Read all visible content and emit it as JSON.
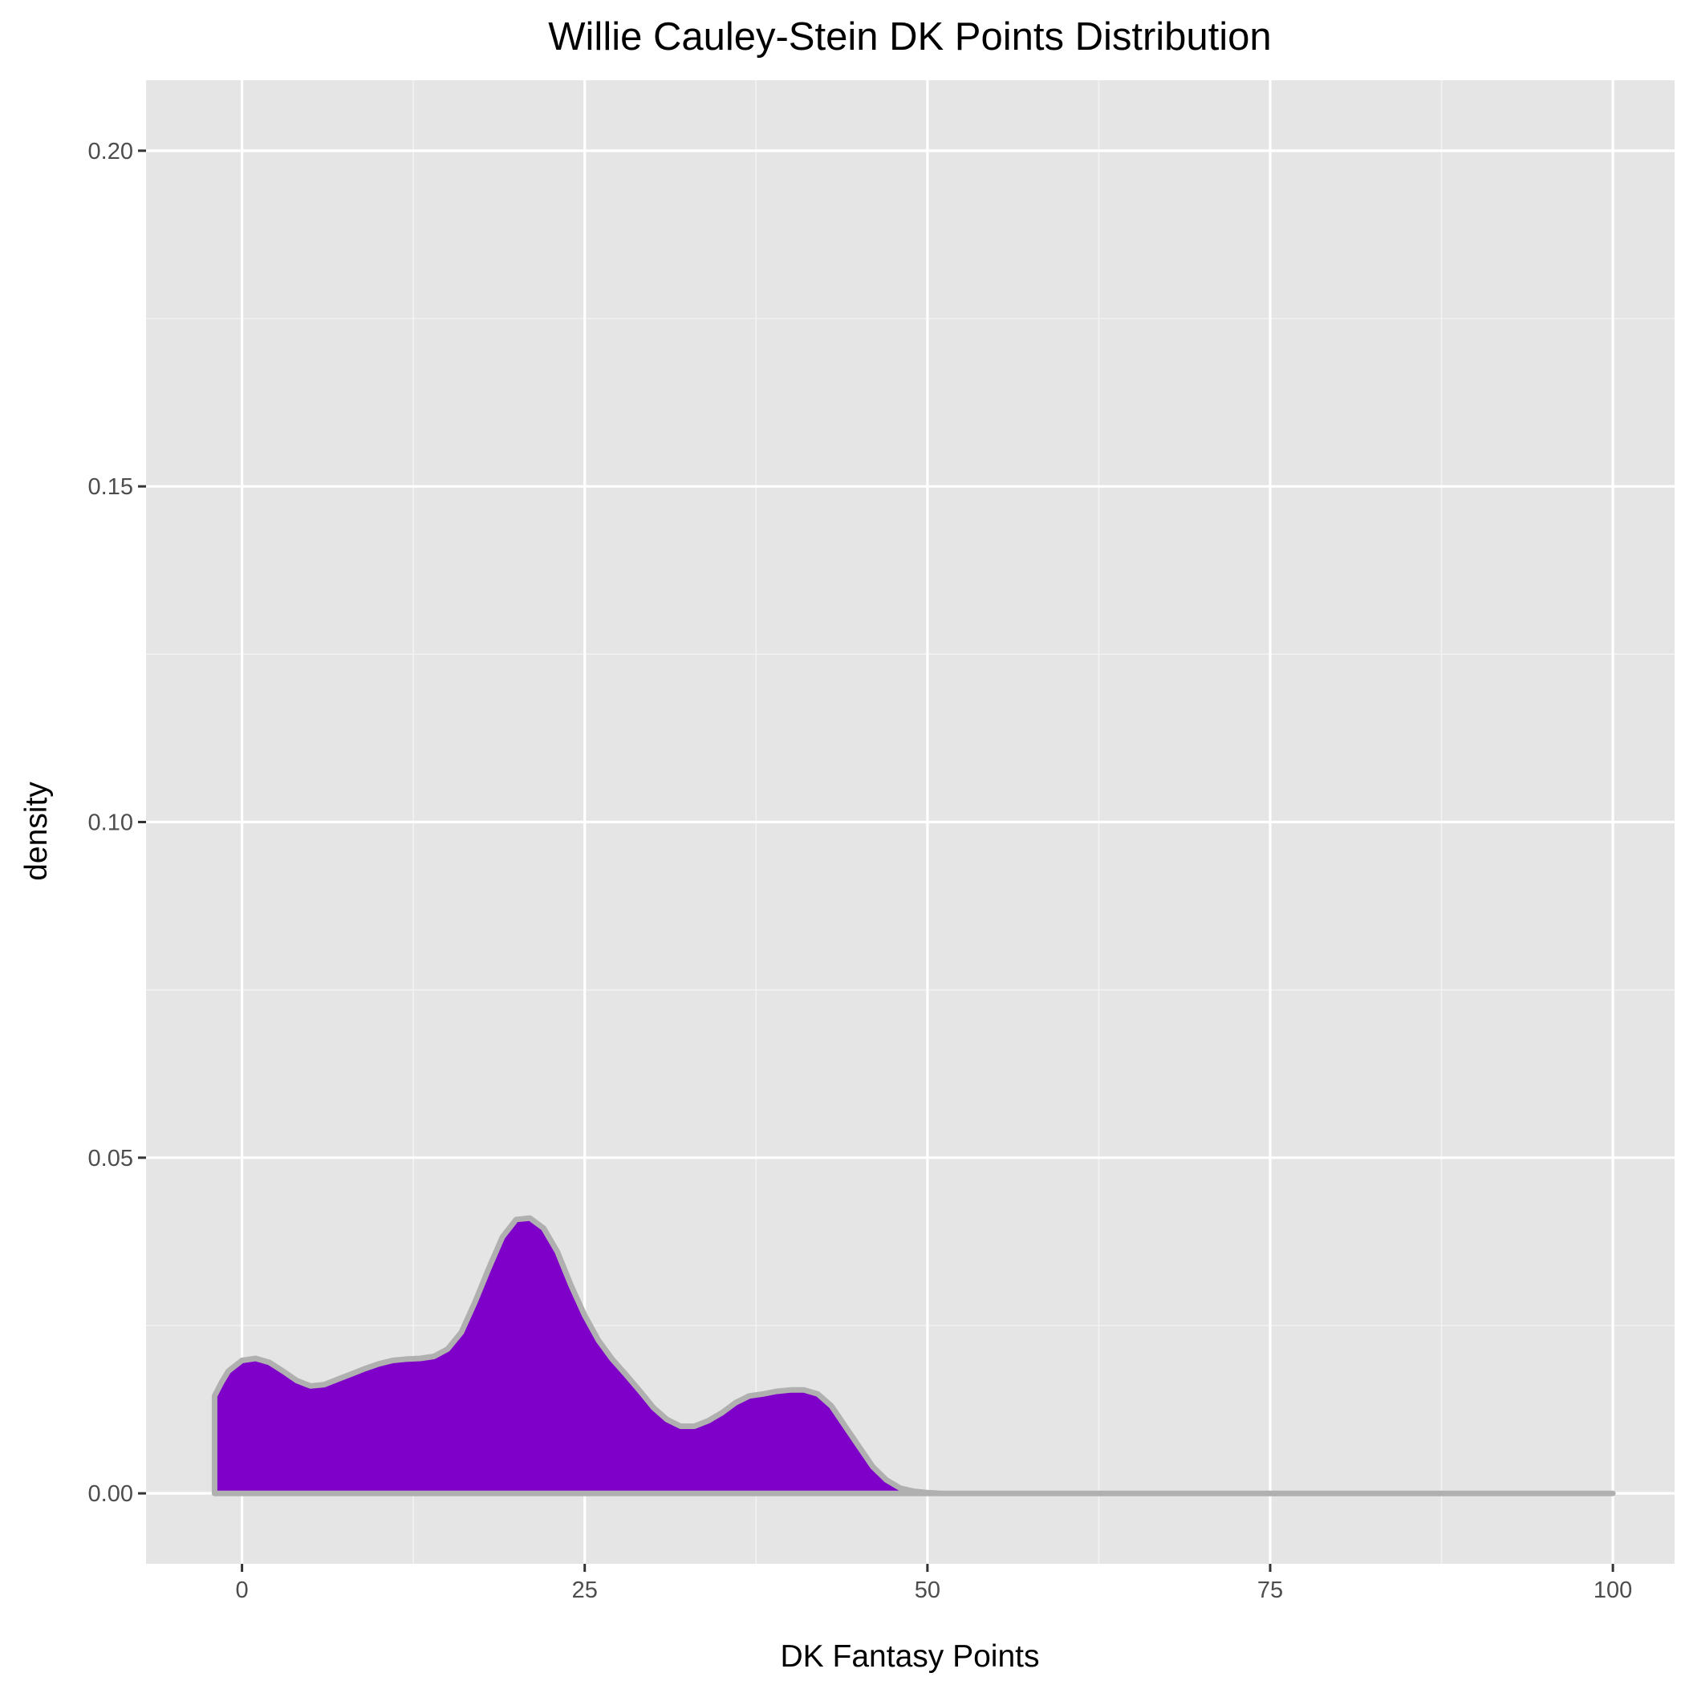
{
  "chart_data": {
    "type": "area",
    "title": "Willie Cauley-Stein DK Points Distribution",
    "xlabel": "DK Fantasy Points",
    "ylabel": "density",
    "xlim": [
      -7,
      104.5
    ],
    "ylim": [
      -0.0105,
      0.2105
    ],
    "x_ticks": [
      0,
      25,
      50,
      75,
      100
    ],
    "x_tick_labels": [
      "0",
      "25",
      "50",
      "75",
      "100"
    ],
    "y_ticks": [
      0.0,
      0.05,
      0.1,
      0.15,
      0.2
    ],
    "y_tick_labels": [
      "0.00",
      "0.05",
      "0.10",
      "0.15",
      "0.20"
    ],
    "grid": true,
    "legend": "none",
    "colors": {
      "panel_background": "#e5e5e5",
      "grid_major": "#ffffff",
      "grid_minor": "#f2f2f2",
      "fill": "#7f00c8",
      "outline": "#b0b0b0",
      "tick": "#333333"
    },
    "series": [
      {
        "x": [
          -2,
          -1.5,
          -1,
          0,
          1,
          2,
          3,
          4,
          5,
          6,
          7,
          8,
          9,
          10,
          11,
          12,
          13,
          14,
          15,
          16,
          17,
          18,
          19,
          20,
          21,
          22,
          23,
          24,
          25,
          26,
          27,
          28,
          29,
          30,
          31,
          32,
          33,
          34,
          35,
          36,
          37,
          38,
          39,
          40,
          41,
          42,
          43,
          44,
          45,
          46,
          47,
          48,
          49,
          50,
          51,
          52,
          53,
          55,
          60,
          70,
          80,
          90,
          100
        ],
        "y": [
          0.0145,
          0.0165,
          0.0182,
          0.0198,
          0.0201,
          0.0195,
          0.0182,
          0.0168,
          0.016,
          0.0162,
          0.017,
          0.0178,
          0.0186,
          0.0193,
          0.0198,
          0.02,
          0.0201,
          0.0204,
          0.0215,
          0.024,
          0.0285,
          0.0335,
          0.0382,
          0.0408,
          0.041,
          0.0395,
          0.036,
          0.031,
          0.0265,
          0.0228,
          0.02,
          0.0177,
          0.0153,
          0.0128,
          0.011,
          0.01,
          0.01,
          0.0108,
          0.012,
          0.0135,
          0.0145,
          0.0148,
          0.0152,
          0.0154,
          0.0154,
          0.0148,
          0.013,
          0.01,
          0.007,
          0.004,
          0.002,
          0.0008,
          0.0003,
          0.0001,
          0.0,
          0.0,
          0.0,
          0.0,
          0.0,
          0.0,
          0.0,
          0.0,
          0.0
        ]
      }
    ]
  }
}
